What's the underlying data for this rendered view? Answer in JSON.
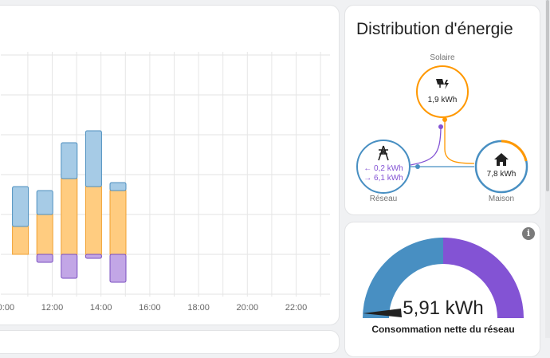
{
  "energy_chart": {
    "x_tick_labels": [
      "10:00",
      "12:00",
      "14:00",
      "16:00",
      "18:00",
      "20:00",
      "22:00"
    ],
    "colors": {
      "grid_import": "#a6cbe6",
      "grid_import_border": "#4d8fbf",
      "solar": "#ffcc80",
      "solar_border": "#f0a030",
      "grid_export": "#c2a6e6",
      "grid_export_border": "#7a4fc0"
    }
  },
  "chart_data": {
    "type": "bar",
    "categories": [
      "10:00",
      "11:00",
      "12:00",
      "13:00",
      "14:00"
    ],
    "series": [
      {
        "name": "Réseau",
        "values": [
          0.5,
          0.3,
          0.45,
          0.7,
          0.1
        ]
      },
      {
        "name": "Solaire",
        "values": [
          0.35,
          0.5,
          0.95,
          0.85,
          0.8
        ]
      },
      {
        "name": "Vers le réseau",
        "values": [
          0,
          -0.1,
          -0.3,
          -0.05,
          -0.35
        ]
      }
    ],
    "xlabel": "",
    "ylabel": "",
    "ylim": [
      -0.5,
      2.5
    ],
    "grid": true
  },
  "distribution": {
    "title": "Distribution d'énergie",
    "solar": {
      "label": "Solaire",
      "value": "1,9 kWh",
      "icon": "solar-power-icon"
    },
    "grid": {
      "label": "Réseau",
      "import_value": "← 0,2 kWh",
      "export_value": "→ 6,1 kWh",
      "icon": "transmission-tower-icon"
    },
    "home": {
      "label": "Maison",
      "value": "7,8 kWh",
      "icon": "home-icon"
    },
    "colors": {
      "solar": "#ff9800",
      "grid": "#488fc2",
      "export": "#8353d4",
      "home": "#488fc2"
    }
  },
  "gauge": {
    "value": "5,91 kWh",
    "name": "Consommation nette du réseau",
    "info_icon": "i",
    "colors": {
      "left": "#488fc2",
      "right": "#8353d4",
      "needle": "#212121"
    }
  }
}
